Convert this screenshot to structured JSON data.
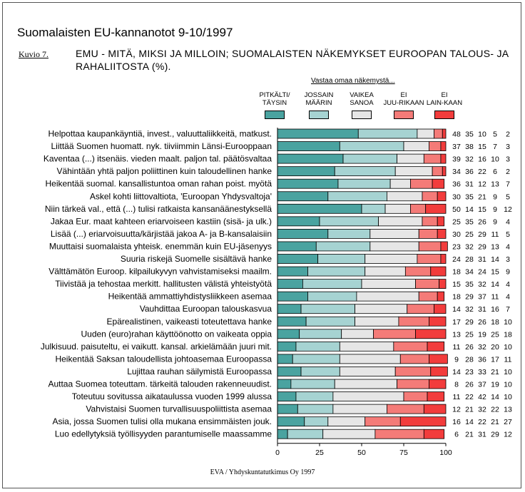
{
  "header": {
    "title": "Suomalaisten EU-kannanotot 9-10/1997",
    "figure_label": "Kuvio 7.",
    "subtitle": "EMU - MITÄ, MIKSI JA MILLOIN; SUOMALAISTEN NÄKEMYKSET EUROOPAN TALOUS- JA RAHALIITOSTA (%).",
    "answer_header": "Vastaa omaa näkemystä..."
  },
  "footer": {
    "source": "EVA / Yhdyskuntatutkimus Oy 1997"
  },
  "chart_data": {
    "type": "bar",
    "stacked": true,
    "orientation": "horizontal",
    "title": "Suomalaisten EU-kannanotot 9-10/1997",
    "xlim": [
      0,
      100
    ],
    "x_ticks": [
      0,
      25,
      50,
      75,
      100
    ],
    "legend_placement": "top-right",
    "series": [
      {
        "name": "PITKÄLTI/ TÄYSIN",
        "color": "#4aa3a0"
      },
      {
        "name": "JOSSAIN MÄÄRIN",
        "color": "#a6d3d2"
      },
      {
        "name": "VAIKEA SANOA",
        "color": "#e6e6e6"
      },
      {
        "name": "EI JUU-RIKAAN",
        "color": "#f47b78"
      },
      {
        "name": "EI LAIN-KAAN",
        "color": "#f23c3c"
      }
    ],
    "categories": [
      "Helpottaa kaupankäyntiä, invest., valuuttaliikkeitä, matkust.",
      "Liittää Suomen huomatt. nyk. tiiviimmin Länsi-Eurooppaan",
      "Kaventaa (...) itsenäis. vieden maalt. paljon tal. päätösvaltaa",
      "Vähintään yhtä paljon poliittinen kuin taloudellinen hanke",
      "Heikentää suomal. kansallistuntoa oman rahan poist. myötä",
      "Askel kohti liittovaltiota, 'Euroopan Yhdysvaltoja'",
      "Niin tärkeä val., että (...) tulisi ratkaista kansanäänestyksellä",
      "Jakaa Eur. maat kahteen eriarvoiseen kastiin (sisä- ja ulk.)",
      "Lisää (...) eriarvoisuutta/kärjistää jakoa A- ja B-kansalaisiin",
      "Muuttaisi suomalaista yhteisk. enemmän kuin EU-jäsenyys",
      "Suuria riskejä Suomelle sisältävä hanke",
      "Välttämätön Euroop. kilpailukyvyn vahvistamiseksi maailm.",
      "Tiivistää ja tehostaa merkitt. hallitusten välistä yhteistyötä",
      "Heikentää ammattiyhdistysliikkeen asemaa",
      "Vauhdittaa Euroopan talouskasvua",
      "Epärealistinen, vaikeasti toteutettava hanke",
      "Uuden (euro)rahan käyttöönotto on vaikeata oppia",
      "Julkisuud. paisuteltu, ei vaikutt. kansal. arkielämään juuri mit.",
      "Heikentää Saksan taloudellista johtoasemaa Euroopassa",
      "Lujittaa rauhan säilymistä Euroopassa",
      "Auttaa Suomea toteuttam. tärkeitä talouden rakenneuudist.",
      "Toteutuu sovitussa aikataulussa vuoden 1999 alussa",
      "Vahvistaisi Suomen turvallisuuspoliittista asemaa",
      "Asia, jossa Suomen tulisi olla mukana ensimmäisten jouk.",
      "Luo edellytyksiä työllisyyden parantumiselle maassamme"
    ],
    "values": [
      [
        48,
        35,
        10,
        5,
        2
      ],
      [
        37,
        38,
        15,
        7,
        3
      ],
      [
        39,
        32,
        16,
        10,
        3
      ],
      [
        34,
        36,
        22,
        6,
        2
      ],
      [
        36,
        31,
        12,
        13,
        7
      ],
      [
        30,
        35,
        21,
        9,
        5
      ],
      [
        50,
        14,
        15,
        9,
        12
      ],
      [
        25,
        35,
        26,
        9,
        4
      ],
      [
        30,
        25,
        29,
        11,
        5
      ],
      [
        23,
        32,
        29,
        13,
        4
      ],
      [
        24,
        28,
        31,
        14,
        3
      ],
      [
        18,
        34,
        24,
        15,
        9
      ],
      [
        15,
        35,
        32,
        14,
        4
      ],
      [
        18,
        29,
        37,
        11,
        4
      ],
      [
        14,
        32,
        31,
        16,
        7
      ],
      [
        17,
        29,
        26,
        18,
        10
      ],
      [
        13,
        25,
        19,
        25,
        18
      ],
      [
        11,
        26,
        32,
        20,
        10
      ],
      [
        9,
        28,
        36,
        17,
        11
      ],
      [
        14,
        23,
        33,
        21,
        10
      ],
      [
        8,
        26,
        37,
        19,
        10
      ],
      [
        11,
        22,
        42,
        14,
        10
      ],
      [
        12,
        21,
        32,
        22,
        13
      ],
      [
        16,
        14,
        22,
        21,
        27
      ],
      [
        6,
        21,
        31,
        29,
        12
      ]
    ]
  }
}
